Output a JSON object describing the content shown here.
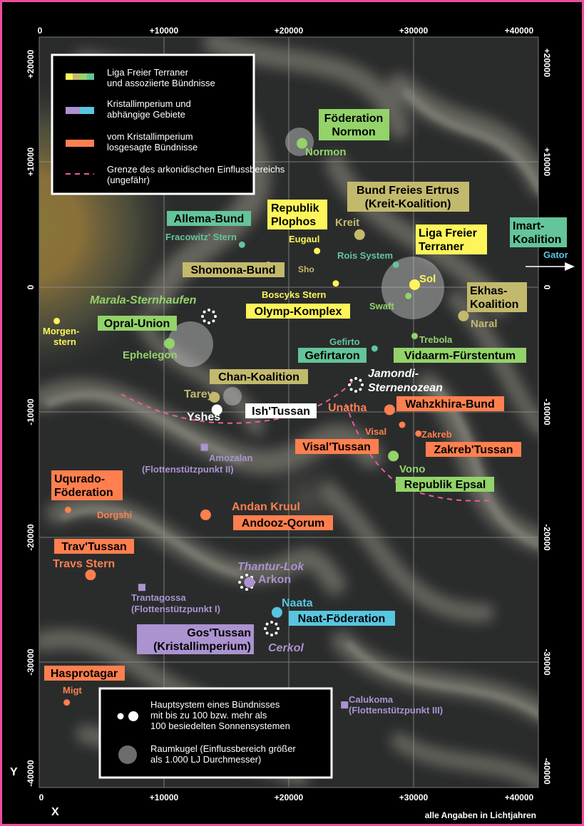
{
  "colors": {
    "frame": "#ee4d9e",
    "liga": "#fdf55a",
    "liga_green": "#93d36a",
    "liga_olive": "#c3b96d",
    "kristall_purple": "#ab93d0",
    "kristall_cyan": "#58c6e0",
    "losgesagt": "#ff7f4f",
    "teal": "#64c49a",
    "white": "#ffffff"
  },
  "axes": {
    "x_ticks_top": [
      "0",
      "+10000",
      "+20000",
      "+30000",
      "+40000"
    ],
    "x_ticks_bottom": [
      "0",
      "+10000",
      "+20000",
      "+30000",
      "+40000"
    ],
    "y_ticks_left": [
      "+20000",
      "+10000",
      "0",
      "-10000",
      "-20000",
      "-30000",
      "-40000"
    ],
    "y_ticks_right": [
      "+20000",
      "+10000",
      "0",
      "-10000",
      "-20000",
      "-30000",
      "-40000"
    ],
    "x_label": "X",
    "y_label": "Y",
    "note": "alle Angaben in Lichtjahren"
  },
  "legend": {
    "liga": "Liga Freier Terraner und assoziierte Bündnisse",
    "kristall": "Kristallimperium und abhängige Gebiete",
    "losgesagt": "vom Kristallimperium losgesagte Bündnisse",
    "grenze": "Grenze des arkonidischen Einflussbereichs (ungefähr)"
  },
  "legend2": {
    "haupt": "Hauptsystem eines Bündnisses mit bis zu 100 bzw. mehr als 100 besiedelten Sonnensystemen",
    "raum": "Raumkugel (Einflussbereich größer als 1.000 LJ Durchmesser)"
  },
  "systems": [
    {
      "name": "Normon",
      "x": 21000,
      "y": 11500,
      "color": "liga_green",
      "size": "large"
    },
    {
      "name": "Kreit",
      "x": 25600,
      "y": 4200,
      "color": "liga_olive",
      "size": "large"
    },
    {
      "name": "Fracowitz' Stern",
      "x": 16200,
      "y": 3400,
      "color": "teal",
      "size": "small"
    },
    {
      "name": "Eugaul",
      "x": 22200,
      "y": 2900,
      "color": "liga",
      "size": "small"
    },
    {
      "name": "Rois System",
      "x": 28500,
      "y": 1800,
      "color": "teal",
      "size": "small"
    },
    {
      "name": "Sho",
      "x": 18300,
      "y": 1800,
      "color": "liga_olive",
      "size": "small"
    },
    {
      "name": "Sol",
      "x": 30000,
      "y": 200,
      "color": "liga",
      "size": "large"
    },
    {
      "name": "Boscyks Stern",
      "x": 23700,
      "y": 300,
      "color": "liga",
      "size": "small"
    },
    {
      "name": "Swaft",
      "x": 29500,
      "y": -700,
      "color": "liga_green",
      "size": "small"
    },
    {
      "name": "Naral",
      "x": 33900,
      "y": -2300,
      "color": "liga_olive",
      "size": "large"
    },
    {
      "name": "Morgenstern",
      "x": 1400,
      "y": -2700,
      "color": "liga",
      "size": "small"
    },
    {
      "name": "Trebola",
      "x": 30000,
      "y": -3900,
      "color": "liga_green",
      "size": "small"
    },
    {
      "name": "Ephelegon",
      "x": 10400,
      "y": -4500,
      "color": "liga_green",
      "size": "large"
    },
    {
      "name": "Gefirto",
      "x": 26800,
      "y": -4900,
      "color": "teal",
      "size": "small"
    },
    {
      "name": "Tarey",
      "x": 14000,
      "y": -8800,
      "color": "liga_olive",
      "size": "large"
    },
    {
      "name": "Yshes",
      "x": 14200,
      "y": -9800,
      "color": "white",
      "size": "large"
    },
    {
      "name": "Unatha",
      "x": 28000,
      "y": -9800,
      "color": "losgesagt",
      "size": "large"
    },
    {
      "name": "Visal",
      "x": 29000,
      "y": -11000,
      "color": "losgesagt",
      "size": "small"
    },
    {
      "name": "Zakreb",
      "x": 30300,
      "y": -11700,
      "color": "losgesagt",
      "size": "small"
    },
    {
      "name": "Amozalan",
      "x": 13200,
      "y": -12800,
      "color": "kristall_purple",
      "size": "square"
    },
    {
      "name": "Vono",
      "x": 28300,
      "y": -13500,
      "color": "liga_green",
      "size": "large"
    },
    {
      "name": "Dorgshi",
      "x": 2300,
      "y": -17800,
      "color": "losgesagt",
      "size": "small"
    },
    {
      "name": "Andan Kruul",
      "x": 13300,
      "y": -18200,
      "color": "losgesagt",
      "size": "large"
    },
    {
      "name": "Travs Stern",
      "x": 4100,
      "y": -23000,
      "color": "losgesagt",
      "size": "large"
    },
    {
      "name": "Arkon",
      "x": 16800,
      "y": -23600,
      "color": "kristall_purple",
      "size": "large"
    },
    {
      "name": "Trantagossa",
      "x": 8200,
      "y": -24000,
      "color": "kristall_purple",
      "size": "square"
    },
    {
      "name": "Naata",
      "x": 19000,
      "y": -26000,
      "color": "kristall_cyan",
      "size": "large"
    },
    {
      "name": "Migt",
      "x": 2200,
      "y": -33200,
      "color": "losgesagt",
      "size": "small"
    },
    {
      "name": "Calukoma",
      "x": 24400,
      "y": -33400,
      "color": "kristall_purple",
      "size": "square"
    }
  ],
  "labels": {
    "normon": "Normon",
    "kreit": "Kreit",
    "fracowitz": "Fracowitz' Stern",
    "eugaul": "Eugaul",
    "rois": "Rois System",
    "sho": "Sho",
    "sol": "Sol",
    "boscyks": "Boscyks Stern",
    "swaft": "Swaft",
    "naral": "Naral",
    "morgen1": "Morgen-",
    "morgen2": "stern",
    "trebola": "Trebola",
    "ephelegon": "Ephelegon",
    "gefirto": "Gefirto",
    "tarey": "Tarey",
    "yshes": "Yshes",
    "unatha": "Unatha",
    "visal": "Visal",
    "zakreb": "Zakreb",
    "amozalan1": "Amozalan",
    "amozalan2": "(Flottenstützpunkt II)",
    "vono": "Vono",
    "dorgshi": "Dorgshi",
    "andan": "Andan Kruul",
    "travs": "Travs Stern",
    "arkon": "Arkon",
    "trant1": "Trantagossa",
    "trant2": "(Flottenstützpunkt I)",
    "naata": "Naata",
    "migt": "Migt",
    "calu1": "Calukoma",
    "calu2": "(Flottenstützpunkt III)",
    "gator": "Gator",
    "marala": "Marala-Sternhaufen",
    "jamondi1": "Jamondi-",
    "jamondi2": "Sternenozean",
    "thantur": "Thantur-Lok",
    "cerkol": "Cerkol"
  },
  "boxes": {
    "normon1": "Föderation",
    "normon2": "Normon",
    "ertrus1": "Bund Freies Ertrus",
    "ertrus2": "(Kreit-Koalition)",
    "allema": "Allema-Bund",
    "plophos1": "Republik",
    "plophos2": "Plophos",
    "liga1": "Liga Freier",
    "liga2": "Terraner",
    "imart1": "Imart-",
    "imart2": "Koalition",
    "shomona": "Shomona-Bund",
    "ekhas1": "Ekhas-",
    "ekhas2": "Koalition",
    "olymp": "Olymp-Komplex",
    "opral": "Opral-Union",
    "gefirtaron": "Gefirtaron",
    "vidaarm": "Vidaarm-Fürstentum",
    "chan": "Chan-Koalition",
    "ishtussan": "Ish'Tussan",
    "wahzkhira": "Wahzkhira-Bund",
    "visaltussan": "Visal'Tussan",
    "zakrebtussan": "Zakreb'Tussan",
    "uqurado1": "Uqurado-",
    "uqurado2": "Föderation",
    "epsal": "Republik Epsal",
    "andooz": "Andooz-Qorum",
    "travtussan": "Trav'Tussan",
    "naat": "Naat-Föderation",
    "gos1": "Gos'Tussan",
    "gos2": "(Kristallimperium)",
    "hasprotagar": "Hasprotagar"
  }
}
